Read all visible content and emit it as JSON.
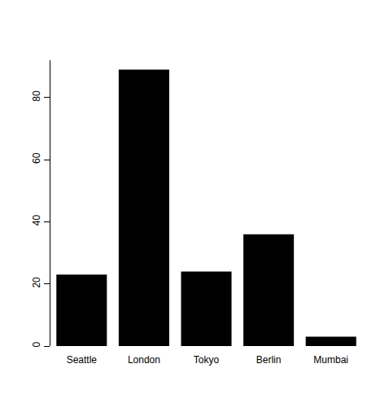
{
  "chart_data": {
    "type": "bar",
    "categories": [
      "Seattle",
      "London",
      "Tokyo",
      "Berlin",
      "Mumbai"
    ],
    "values": [
      23,
      89,
      24,
      36,
      3
    ],
    "color": "#000000",
    "ylim": [
      0,
      92
    ],
    "yticks": [
      0,
      20,
      40,
      60,
      80
    ],
    "grid": false
  }
}
